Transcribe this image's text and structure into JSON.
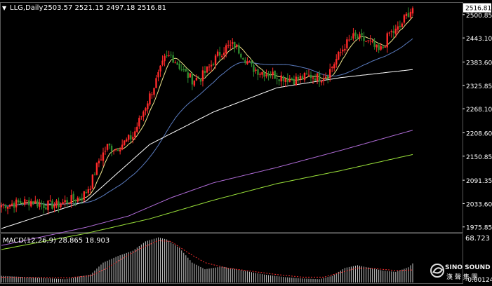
{
  "header": {
    "symbol_label": "LLG,Daily",
    "ohlc": "2503.57 2521.15 2497.18 2516.81",
    "dropdown_glyph": "▼"
  },
  "price_axis": {
    "ticks": [
      "2500.85",
      "2443.10",
      "2383.60",
      "2325.85",
      "2268.10",
      "2208.60",
      "2150.85",
      "2091.35",
      "2033.60",
      "1975.85"
    ],
    "current_price": "2516.81",
    "range": [
      1965.0,
      2530.0
    ]
  },
  "macd_panel": {
    "label": "MACD(12,26,9) 28.865 18.903",
    "axis_top": "68.723",
    "axis_bottom": "-0.00124"
  },
  "watermark": {
    "brand": "SINO SOUND",
    "subtitle": "漢 聲 集 團"
  },
  "colors": {
    "background": "#000000",
    "up_candle": "#ff2a2a",
    "down_candle": "#2e8b2e",
    "ma_yellow": "#f0e68c",
    "ma_blue": "#5a7bbf",
    "ma_white": "#ffffff",
    "ma_violet": "#b06cd8",
    "ma_green": "#9be33a",
    "macd_signal": "#ff3030",
    "axis_text": "#ffffff"
  },
  "chart_data": {
    "type": "candlestick",
    "anchors": [
      [
        0,
        2030
      ],
      [
        8,
        2035
      ],
      [
        14,
        2040
      ],
      [
        20,
        2030
      ],
      [
        26,
        2030
      ],
      [
        32,
        2042
      ],
      [
        38,
        2050
      ],
      [
        42,
        2080
      ],
      [
        46,
        2140
      ],
      [
        50,
        2175
      ],
      [
        54,
        2170
      ],
      [
        58,
        2185
      ],
      [
        62,
        2200
      ],
      [
        66,
        2250
      ],
      [
        70,
        2300
      ],
      [
        74,
        2350
      ],
      [
        77,
        2390
      ],
      [
        80,
        2400
      ],
      [
        83,
        2380
      ],
      [
        86,
        2360
      ],
      [
        90,
        2340
      ],
      [
        94,
        2345
      ],
      [
        98,
        2370
      ],
      [
        102,
        2400
      ],
      [
        106,
        2420
      ],
      [
        110,
        2425
      ],
      [
        114,
        2400
      ],
      [
        118,
        2370
      ],
      [
        122,
        2360
      ],
      [
        126,
        2355
      ],
      [
        130,
        2350
      ],
      [
        134,
        2345
      ],
      [
        138,
        2340
      ],
      [
        142,
        2345
      ],
      [
        146,
        2350
      ],
      [
        150,
        2345
      ],
      [
        154,
        2355
      ],
      [
        158,
        2390
      ],
      [
        162,
        2425
      ],
      [
        166,
        2445
      ],
      [
        170,
        2440
      ],
      [
        174,
        2430
      ],
      [
        178,
        2410
      ],
      [
        180,
        2420
      ],
      [
        183,
        2455
      ],
      [
        186,
        2460
      ],
      [
        188,
        2470
      ],
      [
        190,
        2490
      ],
      [
        192,
        2505
      ],
      [
        194,
        2516.81
      ]
    ],
    "sma": [
      {
        "name": "ma-yellow",
        "period": 7,
        "color": "#f0e68c"
      },
      {
        "name": "ma-blue",
        "period": 40,
        "color": "#5a7bbf"
      }
    ],
    "ema_lines": [
      {
        "name": "ma-white",
        "color": "#ffffff",
        "points": [
          [
            0,
            1972
          ],
          [
            40,
            2040
          ],
          [
            70,
            2180
          ],
          [
            100,
            2260
          ],
          [
            130,
            2320
          ],
          [
            160,
            2345
          ],
          [
            194,
            2365
          ]
        ]
      },
      {
        "name": "ma-violet",
        "color": "#b06cd8",
        "points": [
          [
            0,
            1930
          ],
          [
            40,
            1975
          ],
          [
            60,
            2003
          ],
          [
            80,
            2048
          ],
          [
            100,
            2085
          ],
          [
            130,
            2123
          ],
          [
            160,
            2165
          ],
          [
            194,
            2215
          ]
        ]
      },
      {
        "name": "ma-green",
        "color": "#9be33a",
        "points": [
          [
            0,
            1920
          ],
          [
            40,
            1960
          ],
          [
            70,
            1996
          ],
          [
            100,
            2042
          ],
          [
            130,
            2083
          ],
          [
            160,
            2115
          ],
          [
            194,
            2155
          ]
        ]
      }
    ],
    "macd": {
      "range": [
        0,
        68.723
      ],
      "hist_anchors": [
        [
          0,
          10
        ],
        [
          30,
          5
        ],
        [
          42,
          12
        ],
        [
          48,
          30
        ],
        [
          55,
          40
        ],
        [
          62,
          48
        ],
        [
          68,
          62
        ],
        [
          74,
          68
        ],
        [
          78,
          65
        ],
        [
          84,
          52
        ],
        [
          90,
          30
        ],
        [
          96,
          20
        ],
        [
          104,
          24
        ],
        [
          114,
          18
        ],
        [
          124,
          12
        ],
        [
          134,
          8
        ],
        [
          142,
          6
        ],
        [
          150,
          5
        ],
        [
          156,
          10
        ],
        [
          162,
          22
        ],
        [
          168,
          26
        ],
        [
          174,
          22
        ],
        [
          180,
          18
        ],
        [
          186,
          16
        ],
        [
          192,
          23
        ],
        [
          194,
          28.865
        ]
      ],
      "signal_anchors": [
        [
          0,
          8
        ],
        [
          30,
          7
        ],
        [
          42,
          10
        ],
        [
          50,
          22
        ],
        [
          58,
          38
        ],
        [
          66,
          52
        ],
        [
          74,
          63
        ],
        [
          80,
          62
        ],
        [
          88,
          45
        ],
        [
          96,
          30
        ],
        [
          106,
          22
        ],
        [
          118,
          17
        ],
        [
          130,
          12
        ],
        [
          142,
          8
        ],
        [
          152,
          8
        ],
        [
          160,
          15
        ],
        [
          168,
          22
        ],
        [
          176,
          21
        ],
        [
          186,
          18
        ],
        [
          194,
          18.903
        ]
      ]
    }
  }
}
